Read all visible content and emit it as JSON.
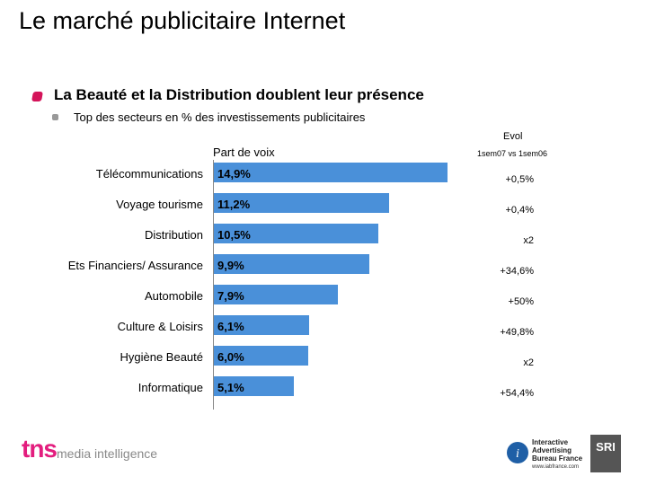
{
  "page": {
    "title": "Le marché publicitaire Internet",
    "subtitle": "La Beauté et la Distribution doublent leur présence",
    "subsubtitle": "Top des secteurs en % des investissements publicitaires"
  },
  "chart_data": {
    "type": "bar",
    "orientation": "horizontal",
    "title": "Part de voix",
    "categories": [
      "Télécommunications",
      "Voyage tourisme",
      "Distribution",
      "Ets Financiers/ Assurance",
      "Automobile",
      "Culture & Loisirs",
      "Hygiène Beauté",
      "Informatique"
    ],
    "values": [
      14.9,
      11.2,
      10.5,
      9.9,
      7.9,
      6.1,
      6.0,
      5.1
    ],
    "value_labels": [
      "14,9%",
      "11,2%",
      "10,5%",
      "9,9%",
      "7,9%",
      "6,1%",
      "6,0%",
      "5,1%"
    ],
    "bar_color": "#4a90d9",
    "evol_title": "Evol",
    "evol_subtitle": "1sem07 vs 1sem06",
    "evol": [
      "+0,5%",
      "+0,4%",
      "x2",
      "+34,6%",
      "+50%",
      "+49,8%",
      "x2",
      "+54,4%"
    ],
    "xlim": [
      0,
      15
    ]
  },
  "footer": {
    "logo_tns": "tns",
    "logo_mi": "media intelligence",
    "iab_lines": [
      "Interactive",
      "Advertising",
      "Bureau France"
    ],
    "iab_url": "www.iabfrance.com",
    "sri": "SRI"
  }
}
